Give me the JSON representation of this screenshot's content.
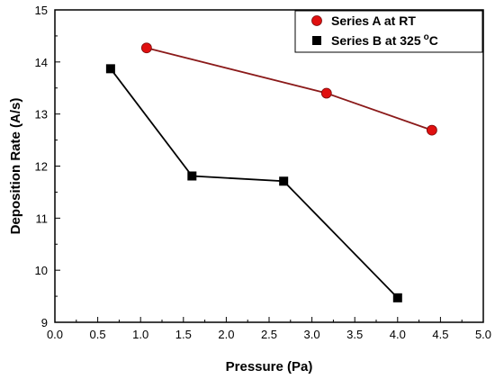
{
  "chart_data": {
    "type": "line",
    "xlabel": "Pressure (Pa)",
    "ylabel": "Deposition Rate (A/s)",
    "xlim": [
      0.0,
      5.0
    ],
    "ylim": [
      9,
      15
    ],
    "x_ticks": [
      "0.0",
      "0.5",
      "1.0",
      "1.5",
      "2.0",
      "2.5",
      "3.0",
      "3.5",
      "4.0",
      "4.5",
      "5.0"
    ],
    "y_ticks": [
      "9",
      "10",
      "11",
      "12",
      "13",
      "14",
      "15"
    ],
    "grid": false,
    "legend_position": "top-right",
    "series": [
      {
        "name": "Series A at RT",
        "marker": "circle",
        "line_color": "#8b1a1a",
        "marker_color": "#e01010",
        "points": [
          {
            "x": 1.07,
            "y": 14.27
          },
          {
            "x": 3.17,
            "y": 13.4
          },
          {
            "x": 4.4,
            "y": 12.69
          }
        ]
      },
      {
        "name": "Series B at 325",
        "name_superscript": "o",
        "name_suffix": "C",
        "marker": "square",
        "line_color": "#000000",
        "marker_color": "#000000",
        "points": [
          {
            "x": 0.65,
            "y": 13.87
          },
          {
            "x": 1.6,
            "y": 11.81
          },
          {
            "x": 2.67,
            "y": 11.71
          },
          {
            "x": 4.0,
            "y": 9.47
          }
        ]
      }
    ]
  }
}
